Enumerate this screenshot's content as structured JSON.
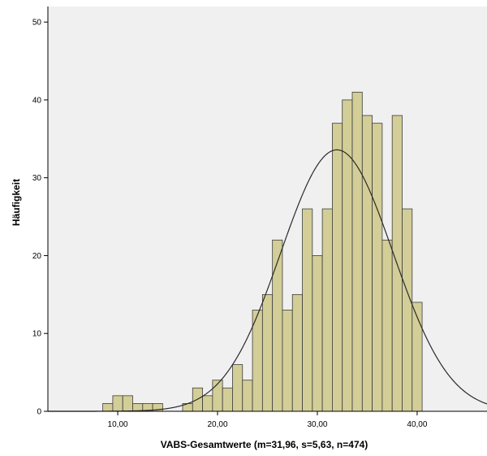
{
  "colors": {
    "plot_background": "#f0f0f0",
    "bar_fill": "#d3ce97",
    "bar_stroke": "#3c3c3c",
    "curve": "#2a2a2a",
    "axis": "#000000"
  },
  "chart_data": {
    "type": "bar",
    "subtype": "histogram-with-normal-curve",
    "title": "",
    "xlabel": "VABS-Gesamtwerte (m=31,96, s=5,63, n=474)",
    "ylabel": "Häufigkeit",
    "xlim": [
      3,
      47
    ],
    "ylim": [
      0,
      52
    ],
    "bin_width": 1,
    "x_ticks": [
      10,
      20,
      30,
      40
    ],
    "x_tick_labels": [
      "10,00",
      "20,00",
      "30,00",
      "40,00"
    ],
    "y_ticks": [
      0,
      10,
      20,
      30,
      40,
      50
    ],
    "y_tick_labels": [
      "0",
      "10",
      "20",
      "30",
      "40",
      "50"
    ],
    "grid": false,
    "bins": [
      {
        "start": 8.5,
        "count": 1
      },
      {
        "start": 9.5,
        "count": 2
      },
      {
        "start": 10.5,
        "count": 2
      },
      {
        "start": 11.5,
        "count": 1
      },
      {
        "start": 12.5,
        "count": 1
      },
      {
        "start": 13.5,
        "count": 1
      },
      {
        "start": 16.5,
        "count": 1
      },
      {
        "start": 17.5,
        "count": 3
      },
      {
        "start": 18.5,
        "count": 2
      },
      {
        "start": 19.5,
        "count": 4
      },
      {
        "start": 20.5,
        "count": 3
      },
      {
        "start": 21.5,
        "count": 6
      },
      {
        "start": 22.5,
        "count": 4
      },
      {
        "start": 23.5,
        "count": 13
      },
      {
        "start": 24.5,
        "count": 15
      },
      {
        "start": 25.5,
        "count": 22
      },
      {
        "start": 26.5,
        "count": 13
      },
      {
        "start": 27.5,
        "count": 15
      },
      {
        "start": 28.5,
        "count": 26
      },
      {
        "start": 29.5,
        "count": 20
      },
      {
        "start": 30.5,
        "count": 26
      },
      {
        "start": 31.5,
        "count": 37
      },
      {
        "start": 32.5,
        "count": 40
      },
      {
        "start": 33.5,
        "count": 41
      },
      {
        "start": 34.5,
        "count": 38
      },
      {
        "start": 35.5,
        "count": 37
      },
      {
        "start": 36.5,
        "count": 22
      },
      {
        "start": 37.5,
        "count": 38
      },
      {
        "start": 38.5,
        "count": 26
      },
      {
        "start": 39.5,
        "count": 14
      }
    ],
    "normal_curve": {
      "mean": 31.96,
      "sd": 5.63,
      "n": 474
    }
  }
}
